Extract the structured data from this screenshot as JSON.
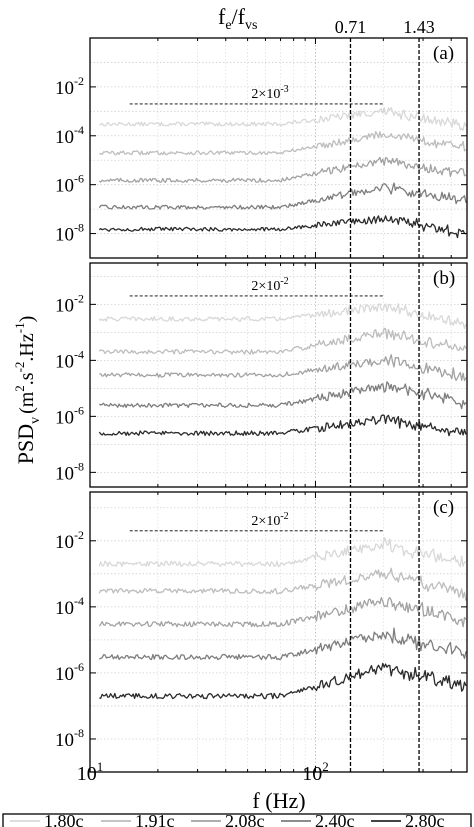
{
  "chart_data": {
    "type": "line",
    "top_axis": {
      "label_main": "f",
      "label_sub1": "e",
      "label_mid": "/f",
      "label_sub2": "vs",
      "ticks": [
        {
          "label": "0.71",
          "f_hz": 143
        },
        {
          "label": "1.43",
          "f_hz": 288
        }
      ]
    },
    "ylabel": {
      "main": "PSD",
      "sub": "v",
      "unit_open": "(m",
      "sup1": "2",
      "unit_mid": ".s",
      "sup2": "-2",
      "unit_mid2": ".Hz",
      "sup3": "-1",
      "unit_close": ")"
    },
    "xlabel": "f (Hz)",
    "xscale": "log",
    "yscale": "log",
    "xlim": [
      10,
      470
    ],
    "x_ticks": [
      {
        "value": 10,
        "base": "10",
        "exp": "1"
      },
      {
        "value": 100,
        "base": "10",
        "exp": "2"
      }
    ],
    "grid": "dotted, both axes",
    "series_colors": [
      "#d8d8d8",
      "#bdbdbd",
      "#a2a2a2",
      "#7d7d7d",
      "#2a2a2a"
    ],
    "legend": {
      "position": "bottom",
      "entries": [
        "1.80c",
        "1.91c",
        "2.08c",
        "2.40c",
        "2.80c"
      ]
    },
    "panels": [
      {
        "label": "(a)",
        "ylim": [
          1e-09,
          1
        ],
        "yticks": [
          {
            "value": 0.01,
            "base": "10",
            "exp": "-2"
          },
          {
            "value": 0.0001,
            "base": "10",
            "exp": "-4"
          },
          {
            "value": 1e-06,
            "base": "10",
            "exp": "-6"
          },
          {
            "value": 1e-08,
            "base": "10",
            "exp": "-8"
          }
        ],
        "reference": {
          "value": 0.002,
          "text_coef": "2×10",
          "text_exp": "-3",
          "f_start": 15,
          "f_end": 200
        },
        "series": [
          {
            "name": "1.80c",
            "base": 0.0003,
            "peak": 0.001
          },
          {
            "name": "1.91c",
            "base": 2e-05,
            "peak": 0.00012
          },
          {
            "name": "2.08c",
            "base": 1.5e-06,
            "peak": 1e-05
          },
          {
            "name": "2.40c",
            "base": 1.2e-07,
            "peak": 8e-07
          },
          {
            "name": "2.80c",
            "base": 1.5e-08,
            "peak": 4e-08
          }
        ]
      },
      {
        "label": "(b)",
        "ylim": [
          3e-09,
          0.3
        ],
        "yticks": [
          {
            "value": 0.01,
            "base": "10",
            "exp": "-2"
          },
          {
            "value": 0.0001,
            "base": "10",
            "exp": "-4"
          },
          {
            "value": 1e-06,
            "base": "10",
            "exp": "-6"
          },
          {
            "value": 1e-08,
            "base": "10",
            "exp": "-8"
          }
        ],
        "reference": {
          "value": 0.02,
          "text_coef": "2×10",
          "text_exp": "-2",
          "f_start": 15,
          "f_end": 200
        },
        "series": [
          {
            "name": "1.80c",
            "base": 0.003,
            "peak": 0.008
          },
          {
            "name": "1.91c",
            "base": 0.0002,
            "peak": 0.001
          },
          {
            "name": "2.08c",
            "base": 3e-05,
            "peak": 0.0001
          },
          {
            "name": "2.40c",
            "base": 2.5e-06,
            "peak": 1.2e-05
          },
          {
            "name": "2.80c",
            "base": 2.5e-07,
            "peak": 8e-07
          }
        ]
      },
      {
        "label": "(c)",
        "ylim": [
          1e-09,
          0.3
        ],
        "yticks": [
          {
            "value": 0.01,
            "base": "10",
            "exp": "-2"
          },
          {
            "value": 0.0001,
            "base": "10",
            "exp": "-4"
          },
          {
            "value": 1e-06,
            "base": "10",
            "exp": "-6"
          },
          {
            "value": 1e-08,
            "base": "10",
            "exp": "-8"
          }
        ],
        "reference": {
          "value": 0.02,
          "text_coef": "2×10",
          "text_exp": "-2",
          "f_start": 15,
          "f_end": 200
        },
        "series": [
          {
            "name": "1.80c",
            "base": 0.002,
            "peak": 0.008
          },
          {
            "name": "1.91c",
            "base": 0.0003,
            "peak": 0.001
          },
          {
            "name": "2.08c",
            "base": 3e-05,
            "peak": 0.00015
          },
          {
            "name": "2.40c",
            "base": 3e-06,
            "peak": 1.5e-05
          },
          {
            "name": "2.80c",
            "base": 2e-07,
            "peak": 1.5e-06
          }
        ]
      }
    ]
  }
}
